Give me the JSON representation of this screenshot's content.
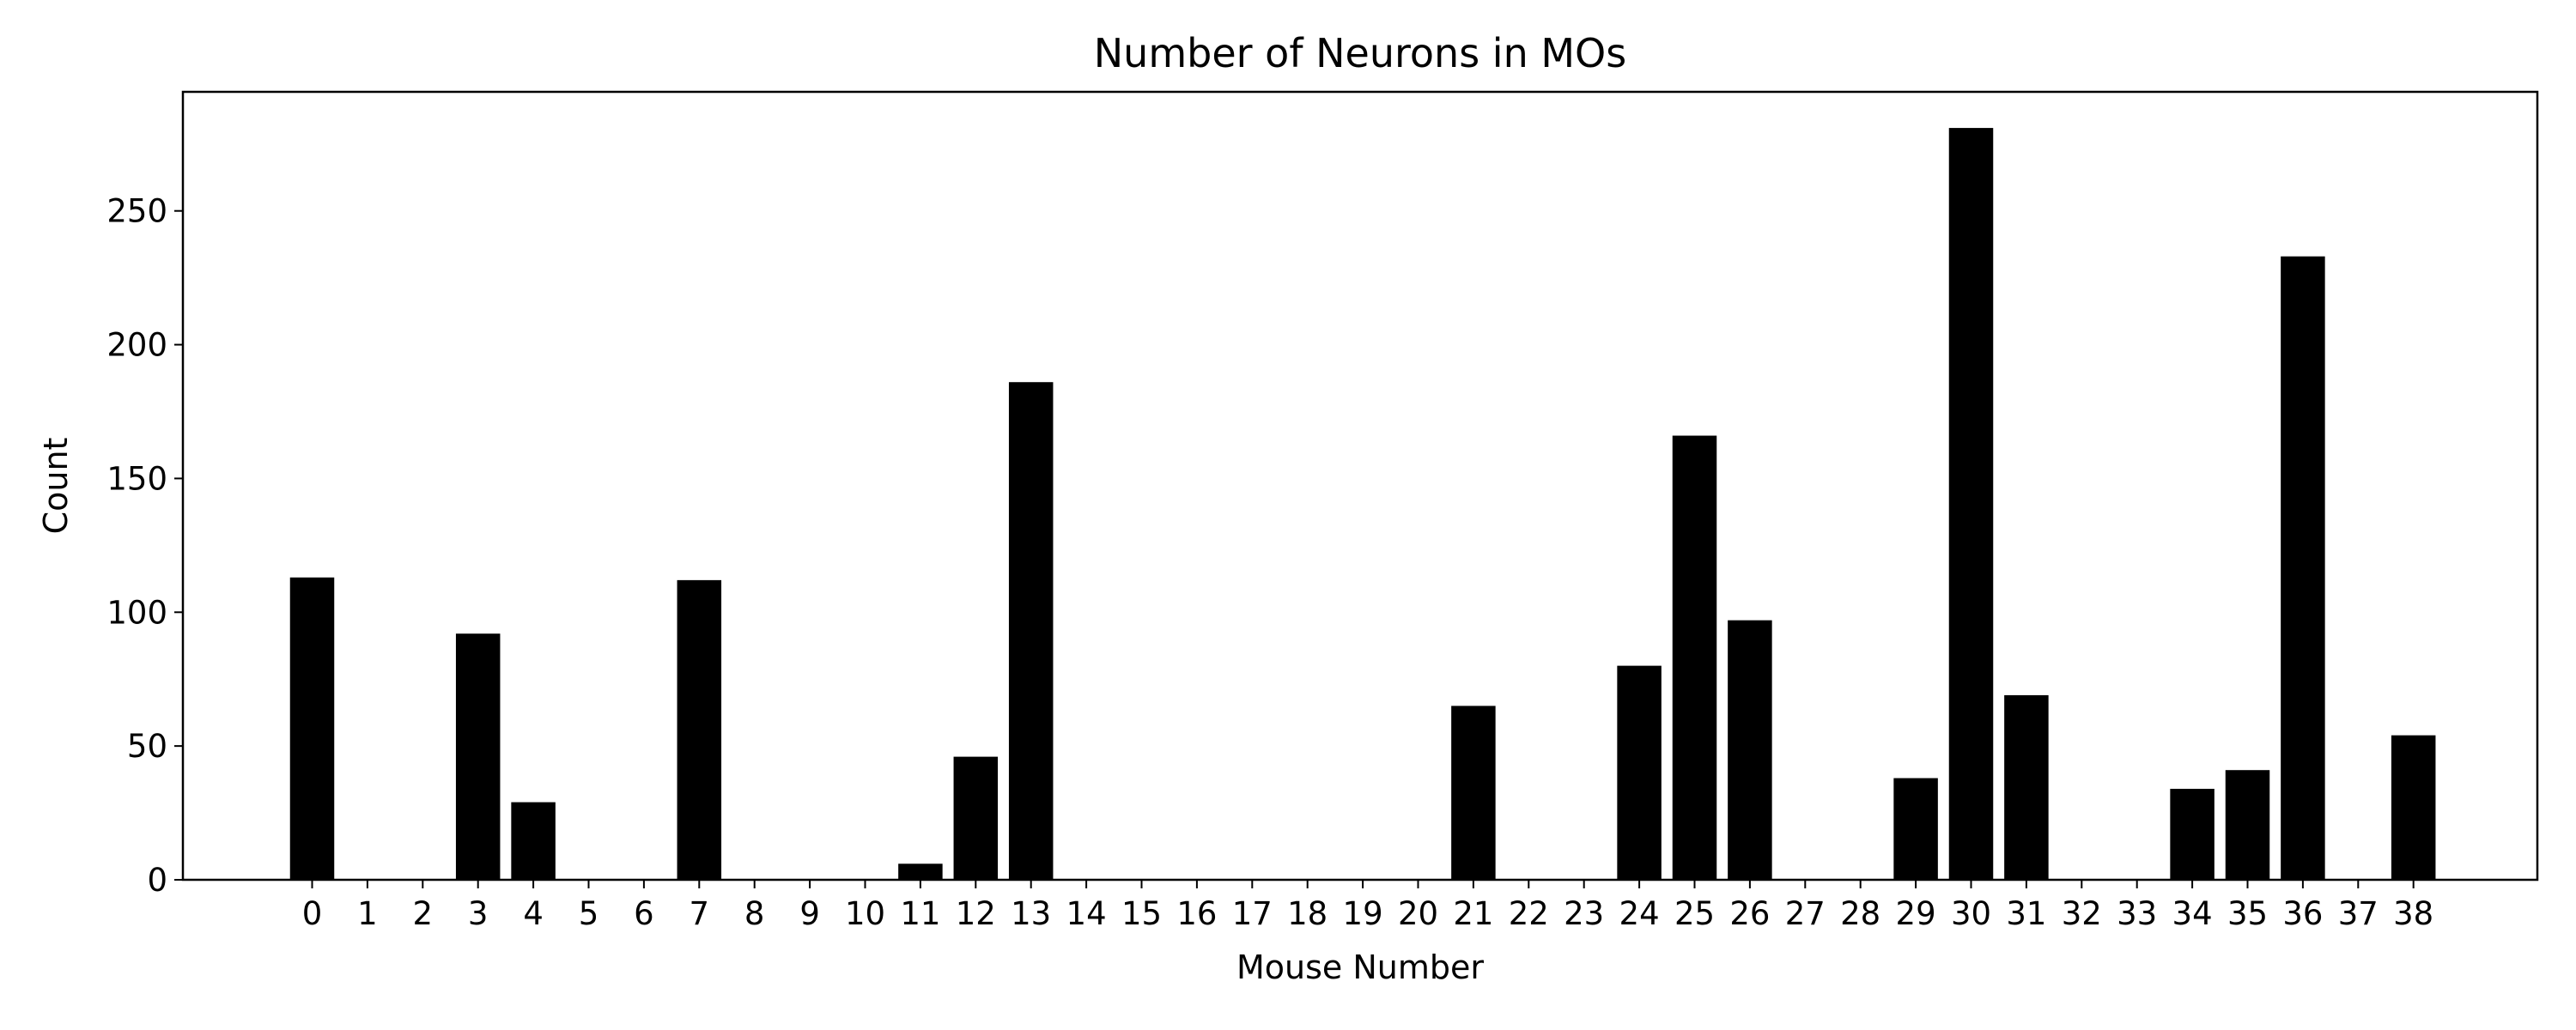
{
  "chart_data": {
    "type": "bar",
    "title": "Number of Neurons in MOs",
    "xlabel": "Mouse Number",
    "ylabel": "Count",
    "categories": [
      "0",
      "1",
      "2",
      "3",
      "4",
      "5",
      "6",
      "7",
      "8",
      "9",
      "10",
      "11",
      "12",
      "13",
      "14",
      "15",
      "16",
      "17",
      "18",
      "19",
      "20",
      "21",
      "22",
      "23",
      "24",
      "25",
      "26",
      "27",
      "28",
      "29",
      "30",
      "31",
      "32",
      "33",
      "34",
      "35",
      "36",
      "37",
      "38"
    ],
    "values": [
      113,
      0,
      0,
      92,
      29,
      0,
      0,
      112,
      0,
      0,
      0,
      6,
      46,
      186,
      0,
      0,
      0,
      0,
      0,
      0,
      0,
      65,
      0,
      0,
      80,
      166,
      97,
      0,
      0,
      38,
      281,
      69,
      0,
      0,
      34,
      41,
      233,
      0,
      54
    ],
    "ylim": [
      0,
      294.5
    ],
    "yticks": [
      0,
      50,
      100,
      150,
      200,
      250
    ],
    "bar_color": "#000000",
    "grid": false,
    "legend": "none"
  }
}
